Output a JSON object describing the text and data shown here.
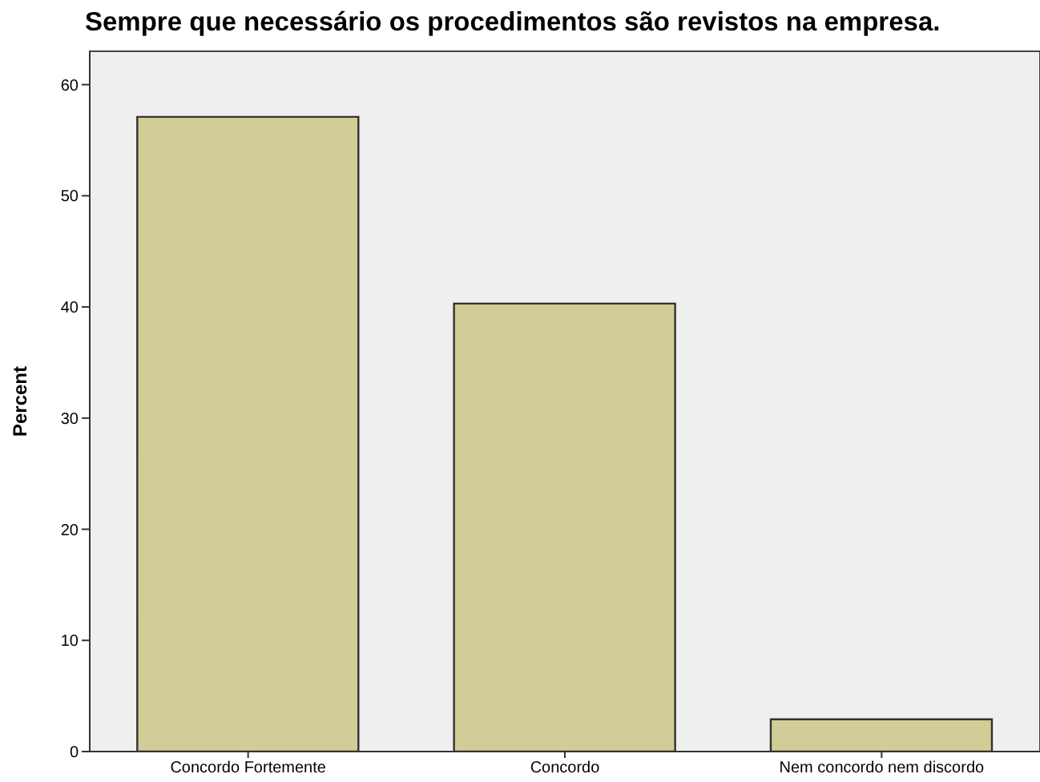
{
  "chart_data": {
    "type": "bar",
    "title": "Sempre que necessário os procedimentos são revistos na empresa.",
    "ylabel": "Percent",
    "categories": [
      "Concordo Fortemente",
      "Concordo",
      "Nem concordo nem discordo"
    ],
    "values": [
      57.1,
      40.3,
      2.9
    ],
    "color": "#d2cd96",
    "ylim": [
      0,
      63
    ],
    "yticks": [
      0,
      10,
      20,
      30,
      40,
      50,
      60
    ]
  }
}
